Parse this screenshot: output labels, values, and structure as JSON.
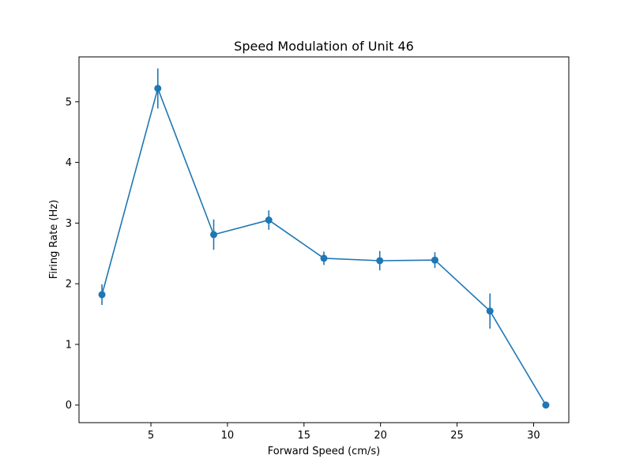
{
  "chart_data": {
    "type": "line",
    "title": "Speed Modulation of Unit 46",
    "xlabel": "Forward Speed (cm/s)",
    "ylabel": "Firing Rate (Hz)",
    "xlim": [
      0.3,
      32.3
    ],
    "ylim": [
      -0.29,
      5.74
    ],
    "xticks": [
      5,
      10,
      15,
      20,
      25,
      30
    ],
    "yticks": [
      0,
      1,
      2,
      3,
      4,
      5
    ],
    "grid": false,
    "color": "#1f77b4",
    "series": [
      {
        "x": [
          1.8,
          5.45,
          9.1,
          12.7,
          16.3,
          19.95,
          23.55,
          27.15,
          30.8
        ],
        "y": [
          1.82,
          5.22,
          2.81,
          3.05,
          2.42,
          2.38,
          2.39,
          1.55,
          0.0
        ],
        "err": [
          0.17,
          0.33,
          0.25,
          0.16,
          0.11,
          0.16,
          0.13,
          0.29,
          0.0
        ]
      }
    ]
  }
}
